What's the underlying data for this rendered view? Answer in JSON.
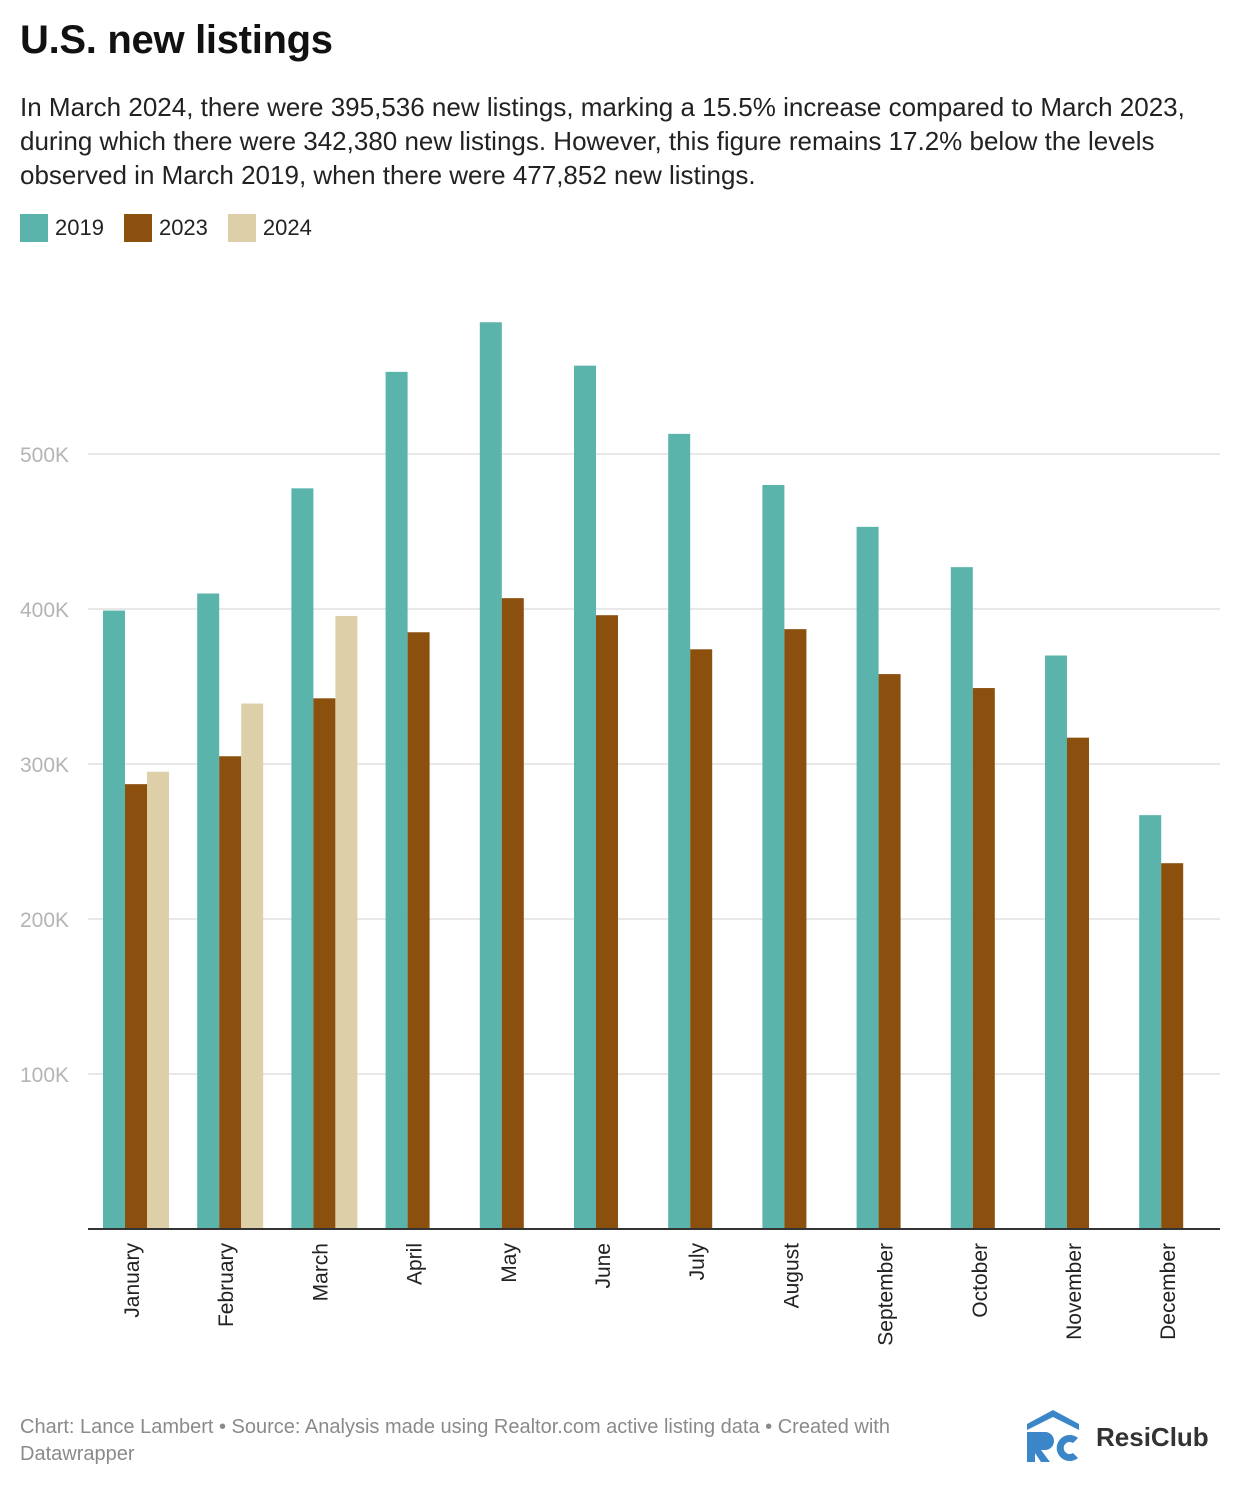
{
  "header": {
    "title": "U.S. new listings",
    "description": "In March 2024, there were 395,536 new listings, marking a 15.5% increase compared to March 2023, during which there were 342,380 new listings. However, this figure remains 17.2% below the levels observed in March 2019, when there were 477,852 new listings."
  },
  "colors": {
    "s2019": "#5bb4ab",
    "s2023": "#8b4f0e",
    "s2024": "#ddcfa8",
    "grid": "#e0e0e0",
    "axis": "#333333",
    "tick": "#b4b4b4"
  },
  "chart_data": {
    "type": "bar",
    "title": "U.S. new listings",
    "categories": [
      "January",
      "February",
      "March",
      "April",
      "May",
      "June",
      "July",
      "August",
      "September",
      "October",
      "November",
      "December"
    ],
    "series": [
      {
        "name": "2019",
        "values": [
          399000,
          410000,
          477852,
          553000,
          585000,
          557000,
          513000,
          480000,
          453000,
          427000,
          370000,
          267000
        ]
      },
      {
        "name": "2023",
        "values": [
          287000,
          305000,
          342380,
          385000,
          407000,
          396000,
          374000,
          387000,
          358000,
          349000,
          317000,
          236000
        ]
      },
      {
        "name": "2024",
        "values": [
          295000,
          339000,
          395536,
          null,
          null,
          null,
          null,
          null,
          null,
          null,
          null,
          null
        ]
      }
    ],
    "yticks": [
      100000,
      200000,
      300000,
      400000,
      500000
    ],
    "ytick_labels": [
      "100K",
      "200K",
      "300K",
      "400K",
      "500K"
    ],
    "ylim": [
      0,
      600000
    ],
    "grid": true,
    "legend_position": "top-left"
  },
  "footer": {
    "credit": "Chart: Lance Lambert • Source: Analysis made using Realtor.com active listing data • Created with Datawrapper"
  },
  "brand": {
    "logo_icon": "resiclub-logo-icon",
    "name": "ResiClub"
  }
}
